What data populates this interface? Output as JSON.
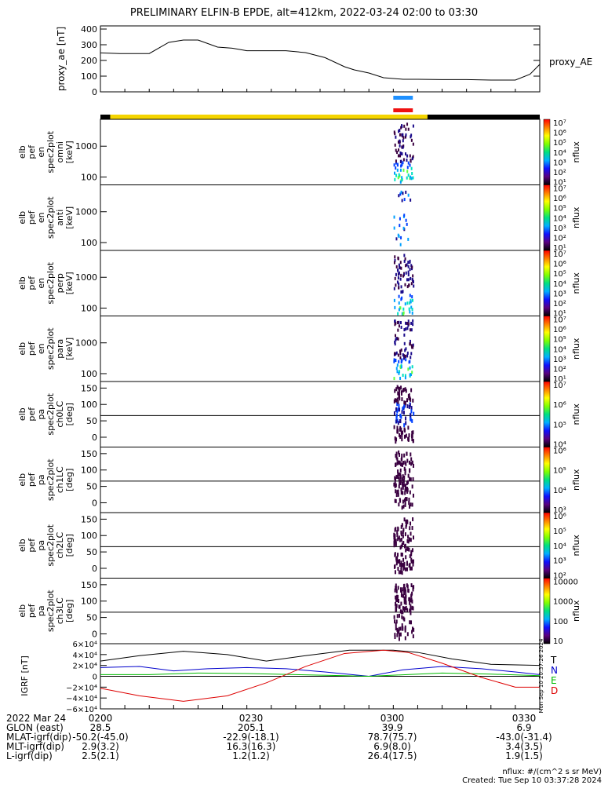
{
  "title": "PRELIMINARY ELFIN-B EPDE, alt=412km, 2022-03-24 02:00 to 03:30",
  "colors": {
    "yellow": "#f4d400",
    "blue_bar": "#1e90ff",
    "red_bar": "#ee1111",
    "ae_line": "#000000",
    "gei_t": "#000000",
    "gei_n": "#0000cc",
    "gei_e": "#00bb00",
    "gei_d": "#dd0000"
  },
  "chart_data": [
    {
      "type": "line",
      "panel": "proxy_ae",
      "ylabel": "proxy_ae [nT]",
      "legend": "proxy_AE",
      "yticks": [
        "400",
        "300",
        "200",
        "100",
        "0"
      ],
      "ylim": [
        0,
        420
      ],
      "x_minutes": [
        0,
        4,
        10,
        14,
        17,
        20,
        24,
        27,
        30,
        34,
        38,
        42,
        46,
        50,
        52,
        55,
        58,
        62,
        65,
        70,
        75,
        80,
        85,
        88,
        90
      ],
      "y": [
        248,
        244,
        244,
        315,
        330,
        330,
        285,
        278,
        262,
        262,
        262,
        250,
        218,
        160,
        140,
        120,
        90,
        80,
        80,
        78,
        78,
        75,
        75,
        112,
        175
      ]
    },
    {
      "type": "heatmap",
      "panel": "spectrograms",
      "status_bar_yellow_minutes": [
        2,
        67
      ],
      "event_bar_minutes": [
        60,
        64
      ],
      "energy_panels": [
        {
          "ylabel": [
            "elb",
            "pef",
            "en",
            "spec2plot",
            "omni",
            "[keV]"
          ],
          "yticks": [
            "1000",
            "100"
          ]
        },
        {
          "ylabel": [
            "elb",
            "pef",
            "en",
            "spec2plot",
            "anti",
            "[keV]"
          ],
          "yticks": [
            "1000",
            "100"
          ]
        },
        {
          "ylabel": [
            "elb",
            "pef",
            "en",
            "spec2plot",
            "perp",
            "[keV]"
          ],
          "yticks": [
            "1000",
            "100"
          ]
        },
        {
          "ylabel": [
            "elb",
            "pef",
            "en",
            "spec2plot",
            "para",
            "[keV]"
          ],
          "yticks": [
            "1000",
            "100"
          ]
        }
      ],
      "pa_panels": [
        {
          "ylabel": [
            "elb",
            "pef",
            "pa",
            "spec2plot",
            "ch0LC",
            "[deg]"
          ],
          "yticks": [
            "150",
            "100",
            "50",
            "0"
          ]
        },
        {
          "ylabel": [
            "elb",
            "pef",
            "pa",
            "spec2plot",
            "ch1LC",
            "[deg]"
          ],
          "yticks": [
            "150",
            "100",
            "50",
            "0"
          ]
        },
        {
          "ylabel": [
            "elb",
            "pef",
            "pa",
            "spec2plot",
            "ch2LC",
            "[deg]"
          ],
          "yticks": [
            "150",
            "100",
            "50",
            "0"
          ]
        },
        {
          "ylabel": [
            "elb",
            "pef",
            "pa",
            "spec2plot",
            "ch3LC",
            "[deg]"
          ],
          "yticks": [
            "150",
            "100",
            "50",
            "0"
          ]
        }
      ],
      "colorbars": [
        {
          "label": "nflux",
          "ticks": [
            "10⁷",
            "10⁶",
            "10⁵",
            "10⁴",
            "10³",
            "10²",
            "10¹"
          ]
        },
        {
          "label": "nflux",
          "ticks": [
            "10⁷",
            "10⁶",
            "10⁵",
            "10⁴",
            "10³",
            "10²",
            "10¹"
          ]
        },
        {
          "label": "nflux",
          "ticks": [
            "10⁷",
            "10⁶",
            "10⁵",
            "10⁴",
            "10³",
            "10²",
            "10¹"
          ]
        },
        {
          "label": "nflux",
          "ticks": [
            "10⁷",
            "10⁶",
            "10⁵",
            "10⁴",
            "10³",
            "10²",
            "10¹"
          ]
        },
        {
          "label": "nflux",
          "ticks": [
            "10⁷",
            "10⁶",
            "10⁵",
            "10⁴"
          ]
        },
        {
          "label": "nflux",
          "ticks": [
            "10⁶",
            "10⁵",
            "10⁴",
            "10³"
          ]
        },
        {
          "label": "nflux",
          "ticks": [
            "10⁶",
            "10⁵",
            "10⁴",
            "10³",
            "10²"
          ]
        },
        {
          "label": "nflux",
          "ticks": [
            "10000",
            "1000",
            "100",
            "10"
          ]
        }
      ]
    },
    {
      "type": "line",
      "panel": "igrf",
      "ylabel": "IGRF [nT]",
      "yticks": [
        "6×10⁴",
        "4×10⁴",
        "2×10⁴",
        "0",
        "−2×10⁴",
        "−4×10⁴",
        "−6×10⁴"
      ],
      "ylim": [
        -60000,
        60000
      ],
      "side_stamp": "Mon Sep 10 20:37:26 2024",
      "series": [
        {
          "name": "T",
          "x": [
            0,
            8,
            17,
            26,
            34,
            42,
            51,
            60,
            65,
            72,
            80,
            90
          ],
          "y": [
            28000,
            38000,
            46000,
            40000,
            28000,
            38000,
            48000,
            48000,
            44000,
            32000,
            22000,
            20000
          ]
        },
        {
          "name": "N",
          "x": [
            0,
            8,
            15,
            22,
            30,
            38,
            46,
            55,
            62,
            70,
            78,
            85,
            90
          ],
          "y": [
            16000,
            18000,
            10000,
            14000,
            16000,
            14000,
            8000,
            0,
            12000,
            18000,
            14000,
            8000,
            3000
          ]
        },
        {
          "name": "E",
          "x": [
            0,
            10,
            20,
            30,
            40,
            50,
            55,
            60,
            70,
            80,
            90
          ],
          "y": [
            3000,
            3000,
            6000,
            5000,
            3000,
            1000,
            0,
            2000,
            6000,
            4000,
            1000
          ]
        },
        {
          "name": "D",
          "x": [
            0,
            8,
            17,
            26,
            34,
            42,
            50,
            58,
            63,
            70,
            78,
            85,
            90
          ],
          "y": [
            -22000,
            -36000,
            -46000,
            -36000,
            -12000,
            18000,
            42000,
            48000,
            44000,
            24000,
            -2000,
            -20000,
            -20000
          ]
        }
      ]
    }
  ],
  "xaxis_ticks": [
    "0200",
    "0230",
    "0300",
    "0330"
  ],
  "ephemeris": [
    {
      "label": "2022 Mar 24",
      "vals": [
        "0200",
        "0230",
        "0300",
        "0330"
      ]
    },
    {
      "label": "GLON (east)",
      "vals": [
        "28.5",
        "205.1",
        "39.9",
        "6.9"
      ]
    },
    {
      "label": "MLAT-igrf(dip)",
      "vals": [
        "-50.2(-45.0)",
        "-22.9(-18.1)",
        "78.7(75.7)",
        "-43.0(-31.4)"
      ]
    },
    {
      "label": "MLT-igrf(dip)",
      "vals": [
        "2.9(3.2)",
        "16.3(16.3)",
        "6.9(8.0)",
        "3.4(3.5)"
      ]
    },
    {
      "label": "L-igrf(dip)",
      "vals": [
        "2.5(2.1)",
        "1.2(1.2)",
        "26.4(17.5)",
        "1.9(1.5)"
      ]
    }
  ],
  "footer": {
    "units": "nflux: #/(cm^2 s sr MeV)",
    "created": "Created: Tue Sep 10 03:37:28 2024"
  }
}
